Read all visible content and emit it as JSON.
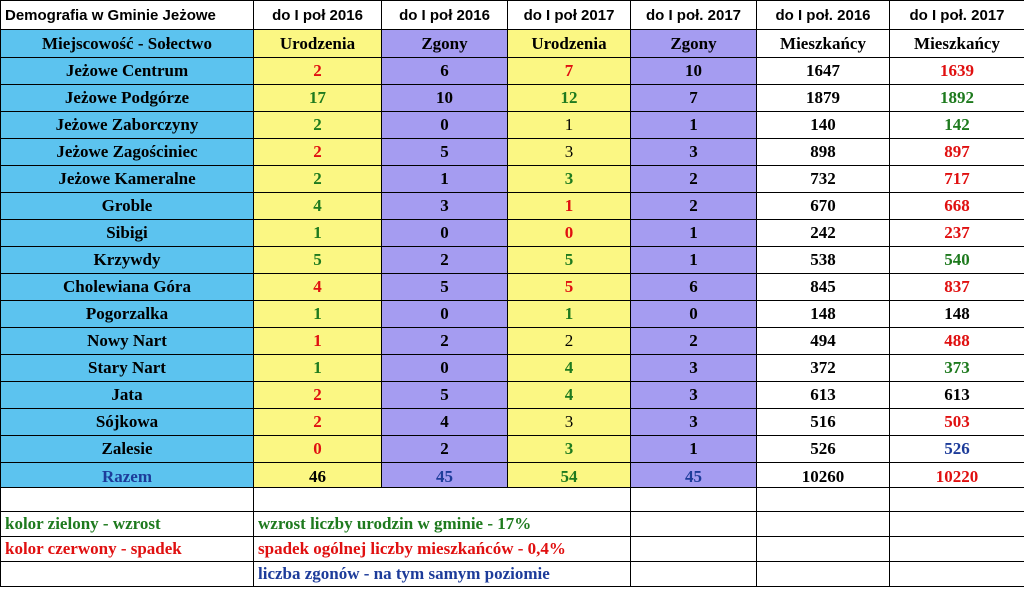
{
  "header": {
    "title": "Demografia w Gminie Jeżowe",
    "cols": [
      "do I poł 2016",
      "do I poł 2016",
      "do I poł 2017",
      "do I poł. 2017",
      "do I poł. 2016",
      "do I poł. 2017"
    ]
  },
  "subheader": [
    "Miejscowość - Sołectwo",
    "Urodzenia",
    "Zgony",
    "Urodzenia",
    "Zgony",
    "Mieszkańcy",
    "Mieszkańcy"
  ],
  "rows": [
    {
      "name": "Jeżowe Centrum",
      "u16": "2",
      "u16c": "r",
      "z16": "6",
      "u17": "7",
      "u17c": "r",
      "u17n": false,
      "z17": "10",
      "m16": "1647",
      "m17": "1639",
      "m17c": "r"
    },
    {
      "name": "Jeżowe Podgórze",
      "u16": "17",
      "u16c": "g",
      "z16": "10",
      "u17": "12",
      "u17c": "g",
      "u17n": false,
      "z17": "7",
      "m16": "1879",
      "m17": "1892",
      "m17c": "g"
    },
    {
      "name": "Jeżowe Zaborczyny",
      "u16": "2",
      "u16c": "g",
      "z16": "0",
      "u17": "1",
      "u17c": "k",
      "u17n": true,
      "z17": "1",
      "m16": "140",
      "m17": "142",
      "m17c": "g"
    },
    {
      "name": "Jeżowe Zagościniec",
      "u16": "2",
      "u16c": "r",
      "z16": "5",
      "u17": "3",
      "u17c": "k",
      "u17n": true,
      "z17": "3",
      "m16": "898",
      "m17": "897",
      "m17c": "r"
    },
    {
      "name": "Jeżowe Kameralne",
      "u16": "2",
      "u16c": "g",
      "z16": "1",
      "u17": "3",
      "u17c": "g",
      "u17n": false,
      "z17": "2",
      "m16": "732",
      "m17": "717",
      "m17c": "r"
    },
    {
      "name": "Groble",
      "u16": "4",
      "u16c": "g",
      "z16": "3",
      "u17": "1",
      "u17c": "r",
      "u17n": false,
      "z17": "2",
      "m16": "670",
      "m17": "668",
      "m17c": "r"
    },
    {
      "name": "Sibigi",
      "u16": "1",
      "u16c": "g",
      "z16": "0",
      "u17": "0",
      "u17c": "r",
      "u17n": false,
      "z17": "1",
      "m16": "242",
      "m17": "237",
      "m17c": "r"
    },
    {
      "name": "Krzywdy",
      "u16": "5",
      "u16c": "g",
      "z16": "2",
      "u17": "5",
      "u17c": "g",
      "u17n": false,
      "z17": "1",
      "m16": "538",
      "m17": "540",
      "m17c": "g"
    },
    {
      "name": "Cholewiana Góra",
      "u16": "4",
      "u16c": "r",
      "z16": "5",
      "u17": "5",
      "u17c": "r",
      "u17n": false,
      "z17": "6",
      "m16": "845",
      "m17": "837",
      "m17c": "r"
    },
    {
      "name": "Pogorzalka",
      "u16": "1",
      "u16c": "g",
      "z16": "0",
      "u17": "1",
      "u17c": "g",
      "u17n": false,
      "z17": "0",
      "m16": "148",
      "m17": "148",
      "m17c": "k"
    },
    {
      "name": "Nowy Nart",
      "u16": "1",
      "u16c": "r",
      "z16": "2",
      "u17": "2",
      "u17c": "k",
      "u17n": true,
      "z17": "2",
      "m16": "494",
      "m17": "488",
      "m17c": "r"
    },
    {
      "name": "Stary Nart",
      "u16": "1",
      "u16c": "g",
      "z16": "0",
      "u17": "4",
      "u17c": "g",
      "u17n": false,
      "z17": "3",
      "m16": "372",
      "m17": "373",
      "m17c": "g"
    },
    {
      "name": "Jata",
      "u16": "2",
      "u16c": "r",
      "z16": "5",
      "u17": "4",
      "u17c": "g",
      "u17n": false,
      "z17": "3",
      "m16": "613",
      "m17": "613",
      "m17c": "k"
    },
    {
      "name": "Sójkowa",
      "u16": "2",
      "u16c": "r",
      "z16": "4",
      "u17": "3",
      "u17c": "k",
      "u17n": true,
      "z17": "3",
      "m16": "516",
      "m17": "503",
      "m17c": "r"
    },
    {
      "name": "Zalesie",
      "u16": "0",
      "u16c": "r",
      "z16": "2",
      "u17": "3",
      "u17c": "g",
      "u17n": false,
      "z17": "1",
      "m16": "526",
      "m17": "526",
      "m17c": "b"
    }
  ],
  "total": {
    "name": "Razem",
    "u16": "46",
    "z16": "45",
    "u17": "54",
    "z17": "45",
    "m16": "10260",
    "m17": "10220"
  },
  "legend": {
    "green_label": "kolor zielony - wzrost",
    "red_label": "kolor czerwony - spadek",
    "note1": "wzrost liczby urodzin w gminie - 17%",
    "note2": "spadek ogólnej liczby mieszkańców  - 0,4%",
    "note3": "liczba zgonów - na tym samym poziomie"
  },
  "colors": {
    "green": "#1e7a1e",
    "red": "#e01010",
    "blue": "#1d3c9a",
    "cyan": "#5cc3ef",
    "yellow": "#fbf783",
    "purple": "#a59cf1"
  }
}
